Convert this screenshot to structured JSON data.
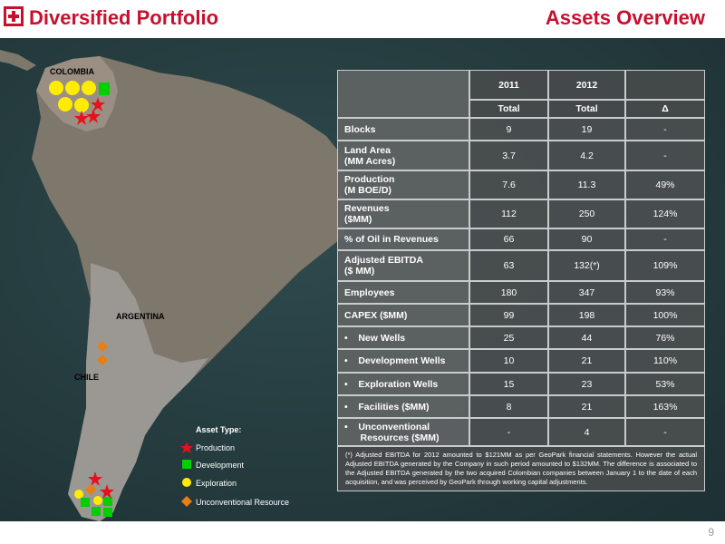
{
  "header": {
    "title": "Diversified Portfolio",
    "section": "Assets Overview"
  },
  "map": {
    "labels": [
      "COLOMBIA",
      "ARGENTINA",
      "CHILE"
    ],
    "legend": {
      "title": "Asset Type:",
      "items": [
        "Production",
        "Development",
        "Exploration",
        "Unconventional Resource"
      ]
    }
  },
  "table": {
    "years": [
      "2011",
      "2012"
    ],
    "subheaders": [
      "Total",
      "Total",
      "Δ"
    ],
    "rows": [
      [
        "Blocks",
        "9",
        "19",
        "-"
      ],
      [
        "Land Area\n(MM Acres)",
        "3.7",
        "4.2",
        "-"
      ],
      [
        "Production\n(M BOE/D)",
        "7.6",
        "11.3",
        "49%"
      ],
      [
        "Revenues\n($MM)",
        "112",
        "250",
        "124%"
      ],
      [
        "% of Oil in Revenues",
        "66",
        "90",
        "-"
      ],
      [
        "Adjusted EBITDA\n($ MM)",
        "63",
        "132(*)",
        "109%"
      ],
      [
        "Employees",
        "180",
        "347",
        "93%"
      ],
      [
        "CAPEX ($MM)",
        "99",
        "198",
        "100%"
      ],
      [
        "•    New Wells",
        "25",
        "44",
        "76%"
      ],
      [
        "•    Development Wells",
        "10",
        "21",
        "110%"
      ],
      [
        "•    Exploration Wells",
        "15",
        "23",
        "53%"
      ],
      [
        "•    Facilities ($MM)",
        "8",
        "21",
        "163%"
      ],
      [
        "•    Unconventional\n      Resources ($MM)",
        "-",
        "4",
        "-"
      ]
    ],
    "footnote": "(*) Adjusted EBITDA for 2012 amounted to $121MM as per GeoPark financial statements. However the actual Adjusted EBITDA generated by the Company in such period amounted to $132MM. The difference is associated to the Adjusted EBITDA generated by the two acquired Colombian companies between January 1 to the date of each acquisition, and was perceived by GeoPark through working capital adjustments."
  },
  "page_number": "9"
}
